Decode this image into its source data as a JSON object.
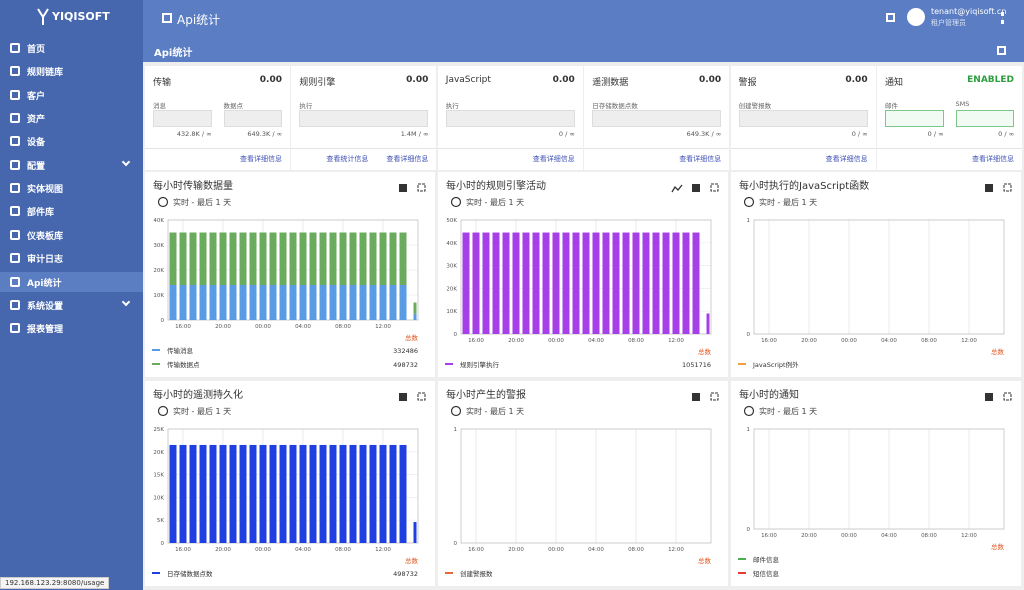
{
  "logo": "YIQISOFT",
  "sidebar": [
    "首页",
    "规则链库",
    "客户",
    "资产",
    "设备",
    "配置",
    "实体视图",
    "部件库",
    "仪表板库",
    "审计日志",
    "Api统计",
    "系统设置",
    "报表管理"
  ],
  "topbar": {
    "title": "Api统计",
    "user": "tenant@yiqisoft.cn",
    "role": "租户管理员"
  },
  "page_title": "Api统计",
  "cards": [
    {
      "title": "传输",
      "value": "0.00",
      "items": [
        {
          "label": "消息",
          "usage": "432.8K / ∞"
        },
        {
          "label": "数据点",
          "usage": "649.3K / ∞"
        }
      ],
      "links": [
        "查看详细信息"
      ]
    },
    {
      "title": "规则引擎",
      "value": "0.00",
      "items": [
        {
          "label": "执行",
          "usage": "1.4M / ∞"
        }
      ],
      "links": [
        "查看统计信息",
        "查看详细信息"
      ]
    },
    {
      "title": "JavaScript",
      "value": "0.00",
      "items": [
        {
          "label": "执行",
          "usage": "0 / ∞"
        }
      ],
      "links": [
        "查看详细信息"
      ]
    },
    {
      "title": "遥测数据",
      "value": "0.00",
      "items": [
        {
          "label": "日存储数据点数",
          "usage": "649.3K / ∞"
        }
      ],
      "links": [
        "查看详细信息"
      ]
    },
    {
      "title": "警报",
      "value": "0.00",
      "items": [
        {
          "label": "创建警报数",
          "usage": "0 / ∞"
        }
      ],
      "links": [
        "查看详细信息"
      ]
    },
    {
      "title": "通知",
      "value": "ENABLED",
      "items": [
        {
          "label": "邮件",
          "usage": "0 / ∞"
        },
        {
          "label": "SMS",
          "usage": "0 / ∞"
        }
      ],
      "links": [
        "查看详细信息"
      ]
    }
  ],
  "charts": [
    {
      "type": "bar",
      "stacked": true,
      "title": "每小时传输数据量",
      "subtitle": "实时 - 最后 1 天",
      "total_label": "总数",
      "categories": [
        null,
        "16:00",
        null,
        null,
        null,
        "20:00",
        null,
        null,
        null,
        "00:00",
        null,
        null,
        null,
        "04:00",
        null,
        null,
        null,
        "08:00",
        null,
        null,
        null,
        "12:00",
        null,
        null,
        null
      ],
      "ylim": [
        0,
        40000
      ],
      "yticks": [
        0,
        {
          "value": 10000,
          "label": "10K"
        },
        {
          "value": 20000,
          "label": "20K"
        },
        {
          "value": 30000,
          "label": "30K"
        },
        {
          "value": 40000,
          "label": "40K"
        }
      ],
      "series": [
        {
          "name": "传输消息",
          "color": "#5a9be6",
          "total": 332486,
          "values": [
            14000,
            14000,
            14000,
            14000,
            14000,
            14000,
            14000,
            14000,
            14000,
            14000,
            14000,
            14000,
            14000,
            14000,
            14000,
            14000,
            14000,
            14000,
            14000,
            14000,
            14000,
            14000,
            14000,
            14000,
            2500
          ]
        },
        {
          "name": "传输数据点",
          "color": "#6aab5e",
          "total": 498732,
          "values": [
            21000,
            21000,
            21000,
            21000,
            21000,
            21000,
            21000,
            21000,
            21000,
            21000,
            21000,
            21000,
            21000,
            21000,
            21000,
            21000,
            21000,
            21000,
            21000,
            21000,
            21000,
            21000,
            21000,
            21000,
            4500
          ]
        }
      ]
    },
    {
      "type": "bar",
      "title": "每小时的规则引擎活动",
      "subtitle": "实时 - 最后 1 天",
      "total_label": "总数",
      "categories": [
        null,
        "16:00",
        null,
        null,
        null,
        "20:00",
        null,
        null,
        null,
        "00:00",
        null,
        null,
        null,
        "04:00",
        null,
        null,
        null,
        "08:00",
        null,
        null,
        null,
        "12:00",
        null,
        null,
        null
      ],
      "ylim": [
        0,
        50000
      ],
      "yticks": [
        0,
        {
          "value": 10000,
          "label": "10K"
        },
        {
          "value": 20000,
          "label": "20K"
        },
        {
          "value": 30000,
          "label": "30K"
        },
        {
          "value": 40000,
          "label": "40K"
        },
        {
          "value": 50000,
          "label": "50K"
        }
      ],
      "series": [
        {
          "name": "规则引擎执行",
          "color": "#a63fe8",
          "total": 1051716,
          "values": [
            44500,
            44500,
            44500,
            44500,
            44500,
            44500,
            44500,
            44500,
            44500,
            44500,
            44500,
            44500,
            44500,
            44500,
            44500,
            44500,
            44500,
            44500,
            44500,
            44500,
            44500,
            44500,
            44500,
            44500,
            9000
          ]
        }
      ]
    },
    {
      "type": "bar",
      "title": "每小时执行的JavaScript函数",
      "subtitle": "实时 - 最后 1 天",
      "total_label": "总数",
      "categories": [
        null,
        "16:00",
        null,
        null,
        null,
        "20:00",
        null,
        null,
        null,
        "00:00",
        null,
        null,
        null,
        "04:00",
        null,
        null,
        null,
        "08:00",
        null,
        null,
        null,
        "12:00",
        null,
        null,
        null
      ],
      "ylim": [
        0,
        1
      ],
      "yticks": [
        0,
        1
      ],
      "series": [
        {
          "name": "JavaScript例外",
          "color": "#f0a040"
        }
      ]
    },
    {
      "type": "bar",
      "title": "每小时的遥测持久化",
      "subtitle": "实时 - 最后 1 天",
      "total_label": "总数",
      "categories": [
        null,
        "16:00",
        null,
        null,
        null,
        "20:00",
        null,
        null,
        null,
        "00:00",
        null,
        null,
        null,
        "04:00",
        null,
        null,
        null,
        "08:00",
        null,
        null,
        null,
        "12:00",
        null,
        null,
        null
      ],
      "ylim": [
        0,
        25000
      ],
      "yticks": [
        0,
        {
          "value": 5000,
          "label": "5K"
        },
        {
          "value": 10000,
          "label": "10K"
        },
        {
          "value": 15000,
          "label": "15K"
        },
        {
          "value": 20000,
          "label": "20K"
        },
        {
          "value": 25000,
          "label": "25K"
        }
      ],
      "series": [
        {
          "name": "日存储数据点数",
          "color": "#1f3fe0",
          "total": 498732,
          "values": [
            21500,
            21500,
            21500,
            21500,
            21500,
            21500,
            21500,
            21500,
            21500,
            21500,
            21500,
            21500,
            21500,
            21500,
            21500,
            21500,
            21500,
            21500,
            21500,
            21500,
            21500,
            21500,
            21500,
            21500,
            4600
          ]
        }
      ]
    },
    {
      "type": "bar",
      "title": "每小时产生的警报",
      "subtitle": "实时 - 最后 1 天",
      "total_label": "总数",
      "categories": [
        null,
        "16:00",
        null,
        null,
        null,
        "20:00",
        null,
        null,
        null,
        "00:00",
        null,
        null,
        null,
        "04:00",
        null,
        null,
        null,
        "08:00",
        null,
        null,
        null,
        "12:00",
        null,
        null,
        null
      ],
      "ylim": [
        0,
        1
      ],
      "yticks": [
        0,
        1
      ],
      "series": [
        {
          "name": "创建警报数",
          "color": "#e8673a"
        }
      ]
    },
    {
      "type": "bar",
      "title": "每小时的通知",
      "subtitle": "实时 - 最后 1 天",
      "total_label": "总数",
      "categories": [
        null,
        "16:00",
        null,
        null,
        null,
        "20:00",
        null,
        null,
        null,
        "00:00",
        null,
        null,
        null,
        "04:00",
        null,
        null,
        null,
        "08:00",
        null,
        null,
        null,
        "12:00",
        null,
        null,
        null
      ],
      "ylim": [
        0,
        1
      ],
      "yticks": [
        0,
        1
      ],
      "series": [
        {
          "name": "邮件信息",
          "color": "#4caf50"
        },
        {
          "name": "短信信息",
          "color": "#e53935"
        }
      ]
    }
  ],
  "status_bar": "192.168.123.29:8080/usage"
}
